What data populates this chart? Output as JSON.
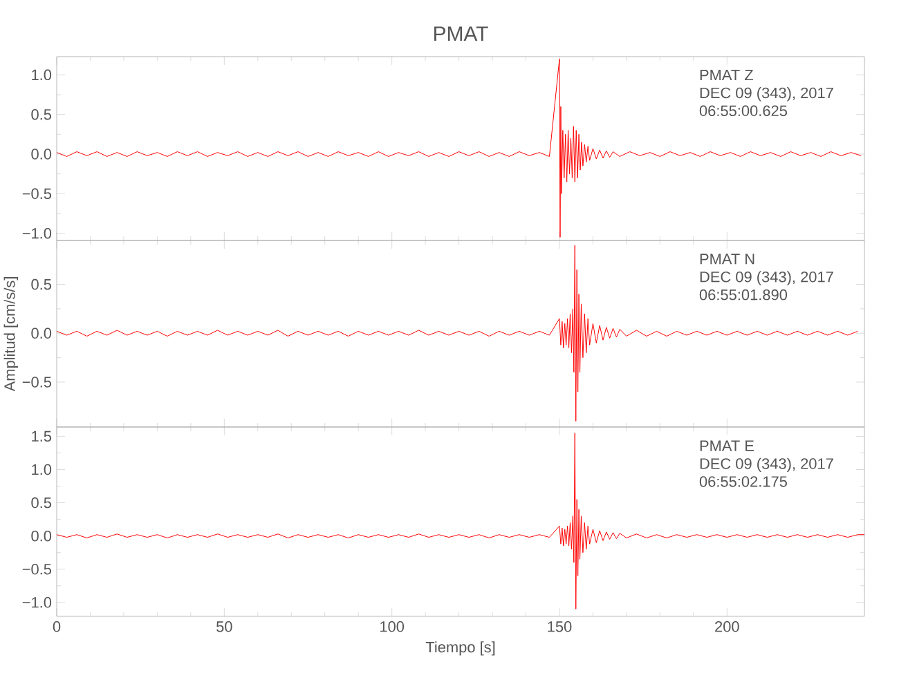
{
  "chart_data": [
    {
      "type": "line",
      "title": "PMAT",
      "annotations": [
        "PMAT Z",
        "DEC 09 (343), 2017",
        "06:55:00.625"
      ],
      "xlim": [
        0,
        241
      ],
      "xticks": [
        0,
        50,
        100,
        150,
        200
      ],
      "ylim": [
        -1.09,
        1.23
      ],
      "yticks": [
        {
          "value": -1,
          "label": "−1.0"
        },
        {
          "value": -0.5,
          "label": "−0.5"
        },
        {
          "value": 0,
          "label": "0.0"
        },
        {
          "value": 0.5,
          "label": "0.5"
        },
        {
          "value": 1,
          "label": "1.0"
        }
      ],
      "tick_labels": "y",
      "marker": "none",
      "series": [
        {
          "color": "#ff0000",
          "x": [
            0,
            3,
            6,
            9,
            12,
            15,
            18,
            21,
            24,
            27,
            30,
            33,
            36,
            39,
            42,
            45,
            48,
            51,
            54,
            57,
            60,
            63,
            66,
            69,
            72,
            75,
            78,
            81,
            84,
            87,
            90,
            93,
            96,
            99,
            102,
            105,
            108,
            111,
            114,
            117,
            120,
            123,
            126,
            129,
            132,
            135,
            138,
            141,
            144,
            147,
            150.0,
            150.2,
            150.4,
            150.6,
            151,
            151.4,
            151.8,
            152.2,
            152.6,
            153,
            153.4,
            153.8,
            154.2,
            154.6,
            155,
            155.4,
            155.8,
            156.2,
            156.6,
            157,
            157.5,
            158,
            158.5,
            159,
            160,
            161,
            162,
            163,
            164,
            165,
            166,
            168,
            171,
            174,
            177,
            180,
            183,
            186,
            189,
            192,
            195,
            198,
            201,
            204,
            207,
            210,
            213,
            216,
            219,
            222,
            225,
            228,
            231,
            234,
            237,
            240
          ],
          "values": [
            0.02,
            -0.03,
            0.03,
            -0.02,
            0.03,
            -0.03,
            0.02,
            -0.03,
            0.03,
            -0.02,
            0.02,
            -0.03,
            0.03,
            -0.02,
            0.03,
            -0.03,
            0.02,
            -0.02,
            0.03,
            -0.03,
            0.02,
            -0.03,
            0.03,
            -0.02,
            0.03,
            -0.03,
            0.02,
            -0.03,
            0.03,
            -0.02,
            0.02,
            -0.03,
            0.03,
            -0.03,
            0.02,
            -0.02,
            0.03,
            -0.03,
            0.02,
            -0.03,
            0.03,
            -0.02,
            0.03,
            -0.03,
            0.02,
            -0.03,
            0.03,
            -0.02,
            0.02,
            -0.03,
            1.2,
            -1.05,
            0.6,
            -0.5,
            0.3,
            -0.3,
            0.25,
            -0.35,
            0.3,
            -0.25,
            0.2,
            -0.3,
            0.35,
            -0.35,
            0.3,
            -0.3,
            0.25,
            -0.2,
            0.15,
            -0.15,
            0.12,
            -0.1,
            0.1,
            -0.08,
            0.07,
            -0.06,
            0.05,
            -0.05,
            0.04,
            -0.04,
            0.03,
            -0.03,
            0.03,
            -0.02,
            0.02,
            -0.03,
            0.03,
            -0.02,
            0.02,
            -0.03,
            0.03,
            -0.02,
            0.02,
            -0.03,
            0.03,
            -0.02,
            0.02,
            -0.03,
            0.03,
            -0.02,
            0.02,
            -0.03,
            0.03,
            -0.02,
            0.02,
            -0.02
          ]
        }
      ]
    },
    {
      "type": "line",
      "ylabel": "Amplitud [cm/s/s]",
      "annotations": [
        "PMAT N",
        "DEC 09 (343), 2017",
        "06:55:01.890"
      ],
      "xlim": [
        0,
        241
      ],
      "xticks": [
        0,
        50,
        100,
        150,
        200
      ],
      "ylim": [
        -0.96,
        0.95
      ],
      "yticks": [
        {
          "value": -0.5,
          "label": "−0.5"
        },
        {
          "value": 0,
          "label": "0.0"
        },
        {
          "value": 0.5,
          "label": "0.5"
        }
      ],
      "tick_labels": "y",
      "marker": "none",
      "series": [
        {
          "color": "#ff0000",
          "x": [
            0,
            3,
            6,
            9,
            12,
            15,
            18,
            21,
            24,
            27,
            30,
            33,
            36,
            39,
            42,
            45,
            48,
            51,
            54,
            57,
            60,
            63,
            66,
            69,
            72,
            75,
            78,
            81,
            84,
            87,
            90,
            93,
            96,
            99,
            102,
            105,
            108,
            111,
            114,
            117,
            120,
            123,
            126,
            129,
            132,
            135,
            138,
            141,
            144,
            147,
            150,
            150.4,
            150.8,
            151.2,
            151.6,
            152,
            152.4,
            152.8,
            153.2,
            153.6,
            154,
            154.3,
            154.6,
            154.9,
            155.2,
            155.5,
            155.8,
            156.1,
            156.5,
            157,
            157.5,
            158,
            158.5,
            159,
            160,
            161,
            162,
            163,
            164,
            165,
            166,
            167,
            168,
            170,
            173,
            176,
            179,
            182,
            185,
            188,
            191,
            194,
            197,
            200,
            203,
            206,
            209,
            212,
            215,
            218,
            221,
            224,
            227,
            230,
            233,
            236,
            239
          ],
          "values": [
            0.02,
            -0.02,
            0.02,
            -0.03,
            0.02,
            -0.02,
            0.03,
            -0.02,
            0.02,
            -0.02,
            0.02,
            -0.03,
            0.02,
            -0.02,
            0.02,
            -0.02,
            0.03,
            -0.02,
            0.02,
            -0.02,
            0.02,
            -0.02,
            0.03,
            -0.03,
            0.02,
            -0.02,
            0.02,
            -0.02,
            0.02,
            -0.03,
            0.02,
            -0.02,
            0.02,
            -0.02,
            0.02,
            -0.02,
            0.03,
            -0.02,
            0.02,
            -0.02,
            0.02,
            -0.02,
            0.02,
            -0.03,
            0.02,
            -0.02,
            0.02,
            -0.02,
            0.02,
            -0.02,
            0.15,
            -0.12,
            0.12,
            -0.15,
            0.1,
            -0.12,
            0.15,
            -0.15,
            0.2,
            -0.2,
            0.25,
            -0.4,
            0.9,
            -0.9,
            0.65,
            -0.6,
            0.4,
            -0.4,
            0.3,
            -0.25,
            0.2,
            -0.2,
            0.15,
            -0.12,
            0.1,
            -0.1,
            0.08,
            -0.07,
            0.06,
            -0.05,
            0.05,
            -0.04,
            0.04,
            -0.03,
            0.03,
            -0.03,
            0.02,
            -0.03,
            0.02,
            -0.02,
            0.02,
            -0.02,
            0.02,
            -0.02,
            0.02,
            -0.02,
            0.02,
            -0.02,
            0.02,
            -0.02,
            0.02,
            -0.02,
            0.02,
            -0.02,
            0.02,
            -0.02,
            0.02
          ]
        }
      ]
    },
    {
      "type": "line",
      "xlabel": "Tiempo [s]",
      "annotations": [
        "PMAT E",
        "DEC 09 (343), 2017",
        "06:55:02.175"
      ],
      "xlim": [
        0,
        241
      ],
      "xticks": [
        0,
        50,
        100,
        150,
        200
      ],
      "ylim": [
        -1.21,
        1.64
      ],
      "yticks": [
        {
          "value": -1,
          "label": "−1.0"
        },
        {
          "value": -0.5,
          "label": "−0.5"
        },
        {
          "value": 0,
          "label": "0.0"
        },
        {
          "value": 0.5,
          "label": "0.5"
        },
        {
          "value": 1,
          "label": "1.0"
        },
        {
          "value": 1.5,
          "label": "1.5"
        }
      ],
      "marker": "none",
      "series": [
        {
          "color": "#ff0000",
          "x": [
            0,
            3,
            6,
            9,
            12,
            15,
            18,
            21,
            24,
            27,
            30,
            33,
            36,
            39,
            42,
            45,
            48,
            51,
            54,
            57,
            60,
            63,
            66,
            69,
            72,
            75,
            78,
            81,
            84,
            87,
            90,
            93,
            96,
            99,
            102,
            105,
            108,
            111,
            114,
            117,
            120,
            123,
            126,
            129,
            132,
            135,
            138,
            141,
            144,
            147,
            150,
            150.4,
            150.8,
            151.2,
            151.6,
            152,
            152.4,
            152.8,
            153.2,
            153.6,
            154,
            154.3,
            154.6,
            154.9,
            155.2,
            155.5,
            155.8,
            156.1,
            156.5,
            157,
            157.5,
            158,
            158.5,
            159,
            160,
            161,
            162,
            163,
            164,
            165,
            166,
            167,
            168,
            170,
            173,
            176,
            179,
            182,
            185,
            188,
            191,
            194,
            197,
            200,
            203,
            206,
            209,
            212,
            215,
            218,
            221,
            224,
            227,
            230,
            233,
            236,
            239,
            241
          ],
          "values": [
            0.02,
            -0.02,
            0.02,
            -0.03,
            0.02,
            -0.02,
            0.03,
            -0.02,
            0.02,
            -0.02,
            0.02,
            -0.03,
            0.02,
            -0.02,
            0.02,
            -0.02,
            0.03,
            -0.02,
            0.02,
            -0.02,
            0.02,
            -0.02,
            0.03,
            -0.03,
            0.02,
            -0.02,
            0.02,
            -0.02,
            0.02,
            -0.03,
            0.02,
            -0.02,
            0.02,
            -0.02,
            0.02,
            -0.02,
            0.03,
            -0.02,
            0.02,
            -0.02,
            0.02,
            -0.02,
            0.02,
            -0.03,
            0.02,
            -0.02,
            0.02,
            -0.02,
            0.02,
            -0.02,
            0.15,
            -0.12,
            0.12,
            -0.15,
            0.1,
            -0.12,
            0.15,
            -0.15,
            0.2,
            -0.2,
            0.3,
            -0.4,
            1.55,
            -1.1,
            0.55,
            -0.6,
            0.4,
            -0.35,
            0.3,
            -0.25,
            0.2,
            -0.2,
            0.15,
            -0.12,
            0.1,
            -0.1,
            0.08,
            -0.07,
            0.06,
            -0.05,
            0.05,
            -0.04,
            0.04,
            -0.03,
            0.03,
            -0.03,
            0.02,
            -0.03,
            0.02,
            -0.02,
            0.02,
            -0.02,
            0.02,
            -0.02,
            0.02,
            -0.02,
            0.02,
            -0.02,
            0.02,
            -0.02,
            0.02,
            -0.02,
            0.02,
            -0.02,
            0.02,
            -0.02,
            0.02,
            0.02
          ]
        }
      ]
    }
  ]
}
